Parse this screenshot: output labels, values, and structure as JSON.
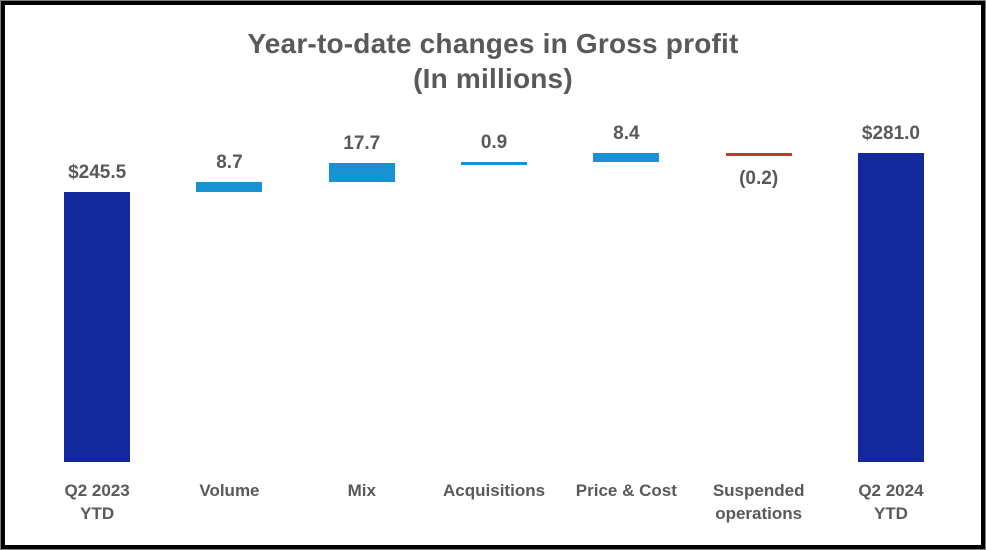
{
  "chart_data": {
    "type": "bar",
    "subtype": "waterfall",
    "title": "Year-to-date changes in Gross profit",
    "subtitle": "(In millions)",
    "grid": false,
    "axes_visible": false,
    "legend": false,
    "data_labels": true,
    "ylim": [
      0,
      300
    ],
    "colors": {
      "total_bar": "#12299c",
      "increase_bar": "#1793d3",
      "decrease_bar": "#b5402e",
      "label_text": "#595959",
      "title_text": "#595959",
      "frame_border": "#000000"
    },
    "columns": [
      {
        "category": "Q2 2023\nYTD",
        "label": "$245.5",
        "value": 245.5,
        "kind": "total"
      },
      {
        "category": "Volume",
        "label": "8.7",
        "value": 8.7,
        "kind": "delta"
      },
      {
        "category": "Mix",
        "label": "17.7",
        "value": 17.7,
        "kind": "delta"
      },
      {
        "category": "Acquisitions",
        "label": "0.9",
        "value": 0.9,
        "kind": "delta"
      },
      {
        "category": "Price & Cost",
        "label": "8.4",
        "value": 8.4,
        "kind": "delta"
      },
      {
        "category": "Suspended\noperations",
        "label": "(0.2)",
        "value": -0.2,
        "kind": "delta"
      },
      {
        "category": "Q2 2024\nYTD",
        "label": "$281.0",
        "value": 281.0,
        "kind": "total"
      }
    ]
  }
}
